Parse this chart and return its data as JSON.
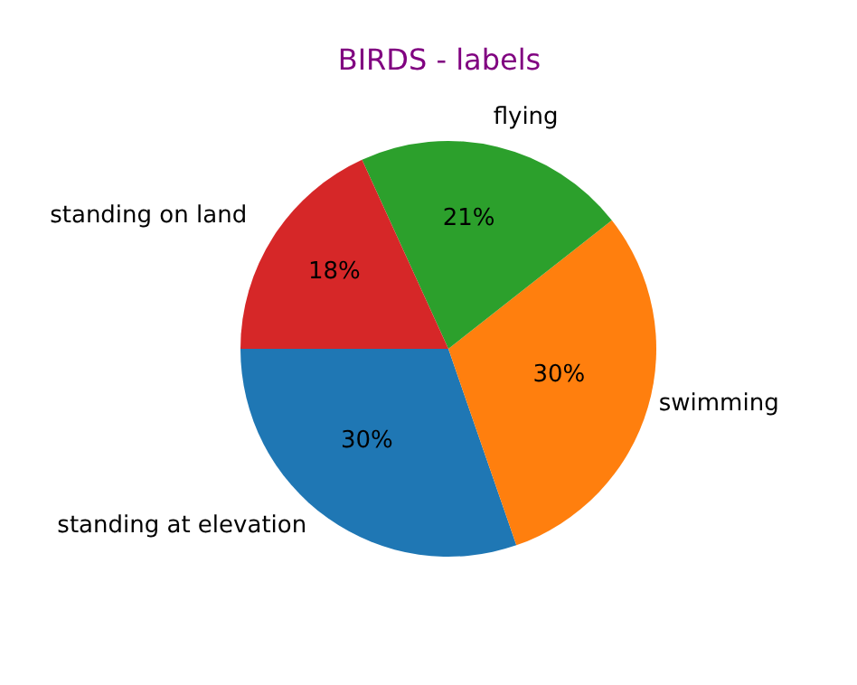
{
  "chart_data": {
    "type": "pie",
    "title": "BIRDS - labels",
    "categories": [
      "standing at elevation",
      "swimming",
      "flying",
      "standing on land"
    ],
    "values": [
      30,
      30,
      21,
      18
    ],
    "value_labels": [
      "30%",
      "30%",
      "21%",
      "18%"
    ],
    "colors": [
      "#1f77b4",
      "#ff7f0e",
      "#2ca02c",
      "#d62728"
    ]
  }
}
